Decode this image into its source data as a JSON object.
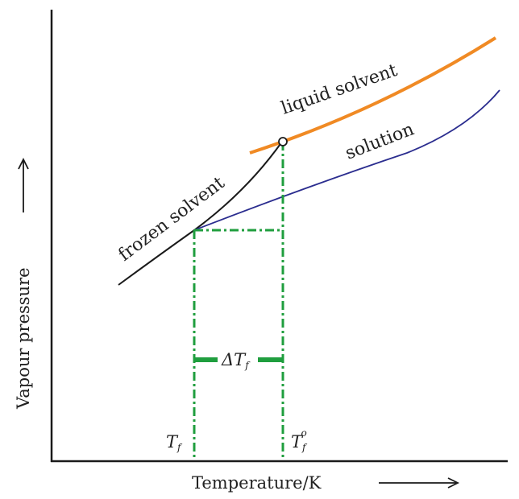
{
  "axes": {
    "x_label": "Temperature/K",
    "y_label": "Vapour pressure"
  },
  "curves": {
    "liquid_solvent": "liquid solvent",
    "solution": "solution",
    "frozen_solvent": "frozen solvent"
  },
  "markers": {
    "delta": {
      "prefix": "ΔT",
      "sub": "f"
    },
    "tf": {
      "main": "T",
      "sub": "f"
    },
    "tf0": {
      "main": "T",
      "sub": "f",
      "sup": "o"
    }
  },
  "colors": {
    "liquid_solvent": "#f08a24",
    "solution": "#2b2d8f",
    "frozen_solvent": "#1a1a1a",
    "guides": "#1f9e3e",
    "axes": "#1a1a1a"
  }
}
